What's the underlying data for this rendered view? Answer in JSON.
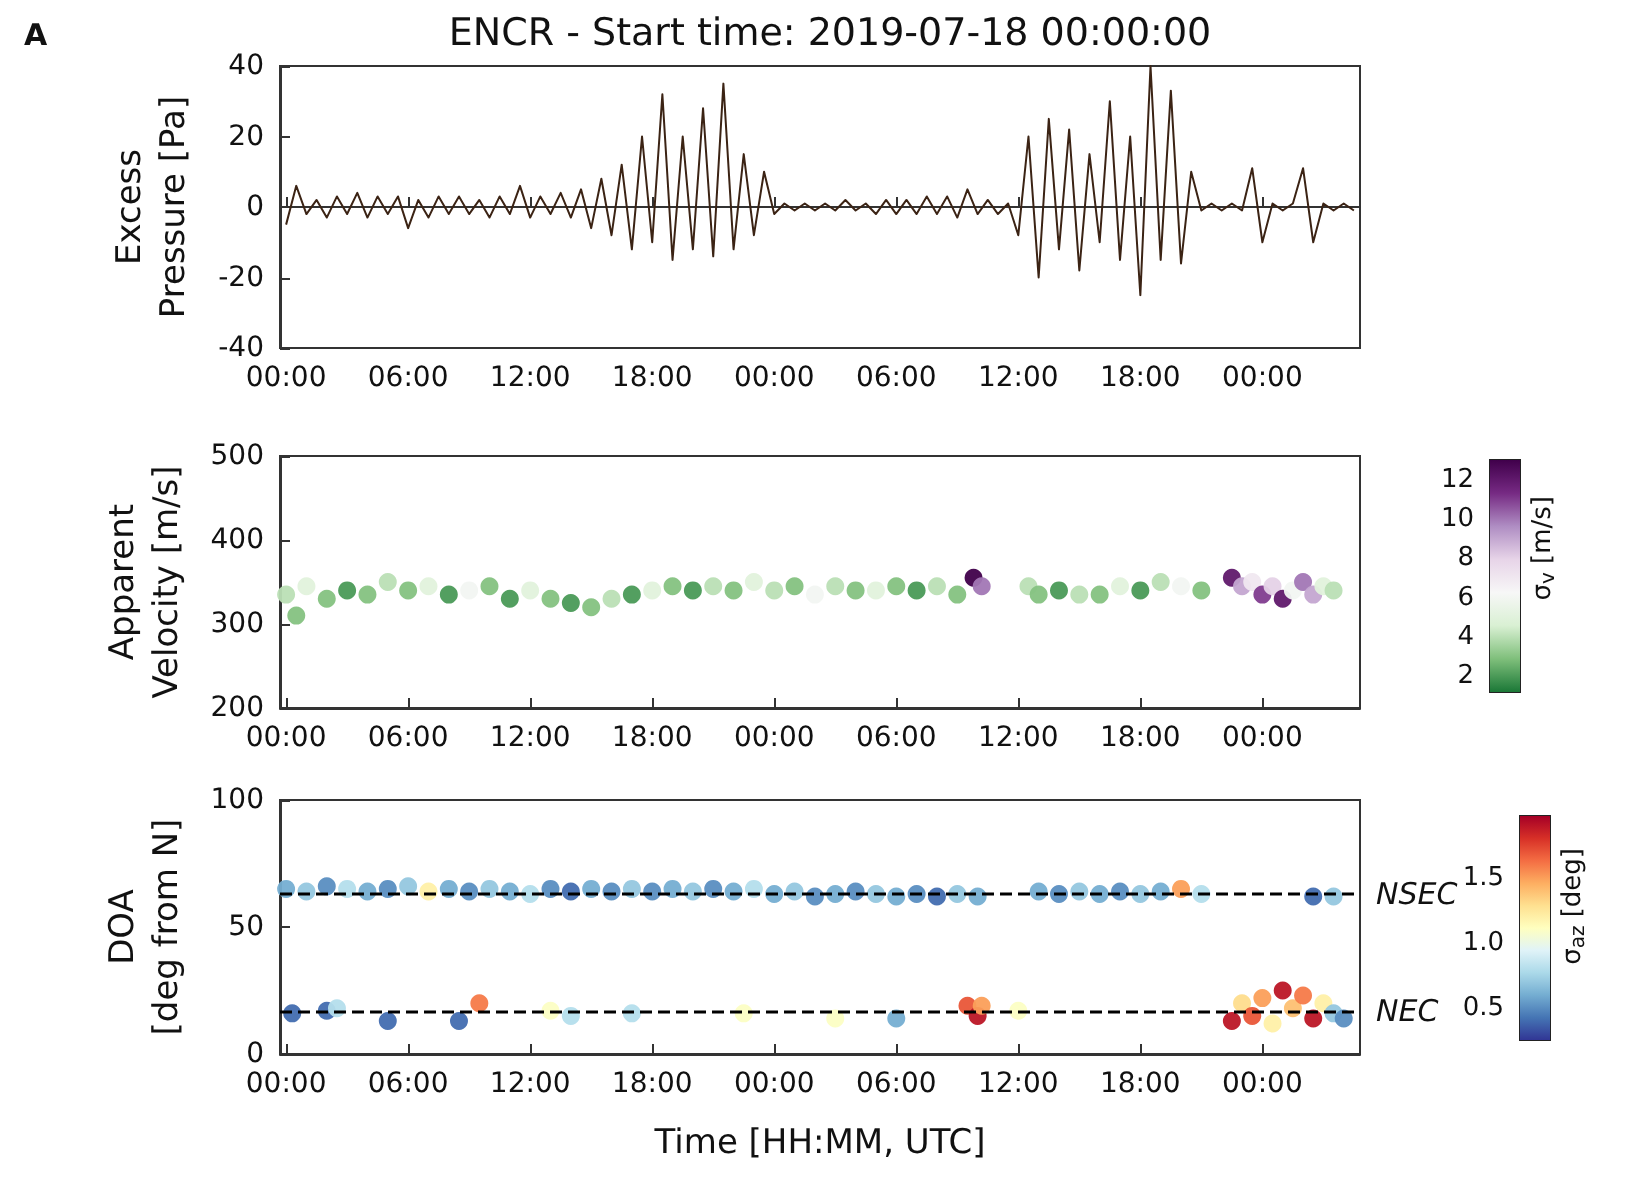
{
  "chart_data": [
    {
      "type": "line",
      "title": "ENCR - Start time: 2019-07-18 00:00:00",
      "ylabel": "Excess Pressure [Pa]",
      "annotations": [
        "A"
      ],
      "xlim": [
        "2019-07-17T23:42",
        "2019-07-20T04:48"
      ],
      "xticks": [
        {
          "value": "2019-07-18T00:00",
          "label": "00:00"
        },
        {
          "value": "2019-07-18T06:00",
          "label": "06:00"
        },
        {
          "value": "2019-07-18T12:00",
          "label": "12:00"
        },
        {
          "value": "2019-07-18T18:00",
          "label": "18:00"
        },
        {
          "value": "2019-07-19T00:00",
          "label": "00:00"
        },
        {
          "value": "2019-07-19T06:00",
          "label": "06:00"
        },
        {
          "value": "2019-07-19T12:00",
          "label": "12:00"
        },
        {
          "value": "2019-07-19T18:00",
          "label": "18:00"
        },
        {
          "value": "2019-07-20T00:00",
          "label": "00:00"
        }
      ],
      "ylim": [
        -40,
        40
      ],
      "yticks": [
        -40,
        -20,
        0,
        20,
        40
      ],
      "series": [
        {
          "color": "#3b2314",
          "x": [
            "2019-07-18T00:00",
            "2019-07-18T00:30",
            "2019-07-18T01:00",
            "2019-07-18T01:30",
            "2019-07-18T02:00",
            "2019-07-18T02:30",
            "2019-07-18T03:00",
            "2019-07-18T03:30",
            "2019-07-18T04:00",
            "2019-07-18T04:30",
            "2019-07-18T05:00",
            "2019-07-18T05:30",
            "2019-07-18T06:00",
            "2019-07-18T06:30",
            "2019-07-18T07:00",
            "2019-07-18T07:30",
            "2019-07-18T08:00",
            "2019-07-18T08:30",
            "2019-07-18T09:00",
            "2019-07-18T09:30",
            "2019-07-18T10:00",
            "2019-07-18T10:30",
            "2019-07-18T11:00",
            "2019-07-18T11:30",
            "2019-07-18T12:00",
            "2019-07-18T12:30",
            "2019-07-18T13:00",
            "2019-07-18T13:30",
            "2019-07-18T14:00",
            "2019-07-18T14:30",
            "2019-07-18T15:00",
            "2019-07-18T15:30",
            "2019-07-18T16:00",
            "2019-07-18T16:30",
            "2019-07-18T17:00",
            "2019-07-18T17:30",
            "2019-07-18T18:00",
            "2019-07-18T18:30",
            "2019-07-18T19:00",
            "2019-07-18T19:30",
            "2019-07-18T20:00",
            "2019-07-18T20:30",
            "2019-07-18T21:00",
            "2019-07-18T21:30",
            "2019-07-18T22:00",
            "2019-07-18T22:30",
            "2019-07-18T23:00",
            "2019-07-18T23:30",
            "2019-07-19T00:00",
            "2019-07-19T00:30",
            "2019-07-19T01:00",
            "2019-07-19T01:30",
            "2019-07-19T02:00",
            "2019-07-19T02:30",
            "2019-07-19T03:00",
            "2019-07-19T03:30",
            "2019-07-19T04:00",
            "2019-07-19T04:30",
            "2019-07-19T05:00",
            "2019-07-19T05:30",
            "2019-07-19T06:00",
            "2019-07-19T06:30",
            "2019-07-19T07:00",
            "2019-07-19T07:30",
            "2019-07-19T08:00",
            "2019-07-19T08:30",
            "2019-07-19T09:00",
            "2019-07-19T09:30",
            "2019-07-19T10:00",
            "2019-07-19T10:30",
            "2019-07-19T11:00",
            "2019-07-19T11:30",
            "2019-07-19T12:00",
            "2019-07-19T12:30",
            "2019-07-19T13:00",
            "2019-07-19T13:30",
            "2019-07-19T14:00",
            "2019-07-19T14:30",
            "2019-07-19T15:00",
            "2019-07-19T15:30",
            "2019-07-19T16:00",
            "2019-07-19T16:30",
            "2019-07-19T17:00",
            "2019-07-19T17:30",
            "2019-07-19T18:00",
            "2019-07-19T18:30",
            "2019-07-19T19:00",
            "2019-07-19T19:30",
            "2019-07-19T20:00",
            "2019-07-19T20:30",
            "2019-07-19T21:00",
            "2019-07-19T21:30",
            "2019-07-19T22:00",
            "2019-07-19T22:30",
            "2019-07-19T23:00",
            "2019-07-19T23:30",
            "2019-07-20T00:00",
            "2019-07-20T00:30",
            "2019-07-20T01:00",
            "2019-07-20T01:30",
            "2019-07-20T02:00",
            "2019-07-20T02:30",
            "2019-07-20T03:00",
            "2019-07-20T03:30",
            "2019-07-20T04:00",
            "2019-07-20T04:30"
          ],
          "values": [
            -5,
            6,
            -2,
            2,
            -3,
            3,
            -2,
            4,
            -3,
            3,
            -2,
            3,
            -6,
            2,
            -3,
            3,
            -2,
            3,
            -2,
            2,
            -3,
            3,
            -2,
            6,
            -3,
            3,
            -2,
            4,
            -3,
            5,
            -6,
            8,
            -8,
            12,
            -12,
            20,
            -10,
            32,
            -15,
            20,
            -12,
            28,
            -14,
            35,
            -12,
            15,
            -8,
            10,
            -2,
            1,
            -1,
            1,
            -1,
            1,
            -1,
            2,
            -1,
            1,
            -2,
            2,
            -2,
            2,
            -2,
            3,
            -2,
            3,
            -3,
            5,
            -2,
            2,
            -2,
            1,
            -8,
            20,
            -20,
            25,
            -12,
            22,
            -18,
            15,
            -10,
            30,
            -15,
            20,
            -25,
            40,
            -15,
            33,
            -16,
            10,
            -1,
            1,
            -1,
            1,
            -1,
            11,
            -10,
            1,
            -1,
            1,
            11,
            -10,
            1,
            -1,
            1,
            -1
          ]
        }
      ]
    },
    {
      "type": "scatter",
      "ylabel": "Apparent Velocity [m/s]",
      "marker": "circle",
      "clabel": "σ$_{v}$ [m/s]",
      "clim": [
        1.2,
        13
      ],
      "cticks": [
        2,
        4,
        6,
        8,
        10,
        12
      ],
      "xlim": [
        "2019-07-17T23:42",
        "2019-07-20T04:48"
      ],
      "xticks": [
        {
          "value": "2019-07-18T00:00",
          "label": "00:00"
        },
        {
          "value": "2019-07-18T06:00",
          "label": "06:00"
        },
        {
          "value": "2019-07-18T12:00",
          "label": "12:00"
        },
        {
          "value": "2019-07-18T18:00",
          "label": "18:00"
        },
        {
          "value": "2019-07-19T00:00",
          "label": "00:00"
        },
        {
          "value": "2019-07-19T06:00",
          "label": "06:00"
        },
        {
          "value": "2019-07-19T12:00",
          "label": "12:00"
        },
        {
          "value": "2019-07-19T18:00",
          "label": "18:00"
        },
        {
          "value": "2019-07-20T00:00",
          "label": "00:00"
        }
      ],
      "ylim": [
        200,
        500
      ],
      "yticks": [
        200,
        300,
        400,
        500
      ],
      "series": [
        {
          "x": [
            "2019-07-18T00:00",
            "2019-07-18T00:30",
            "2019-07-18T01:00",
            "2019-07-18T02:00",
            "2019-07-18T03:00",
            "2019-07-18T04:00",
            "2019-07-18T05:00",
            "2019-07-18T06:00",
            "2019-07-18T07:00",
            "2019-07-18T08:00",
            "2019-07-18T09:00",
            "2019-07-18T10:00",
            "2019-07-18T11:00",
            "2019-07-18T12:00",
            "2019-07-18T13:00",
            "2019-07-18T14:00",
            "2019-07-18T15:00",
            "2019-07-18T16:00",
            "2019-07-18T17:00",
            "2019-07-18T18:00",
            "2019-07-18T19:00",
            "2019-07-18T20:00",
            "2019-07-18T21:00",
            "2019-07-18T22:00",
            "2019-07-18T23:00",
            "2019-07-19T00:00",
            "2019-07-19T01:00",
            "2019-07-19T02:00",
            "2019-07-19T03:00",
            "2019-07-19T04:00",
            "2019-07-19T05:00",
            "2019-07-19T06:00",
            "2019-07-19T07:00",
            "2019-07-19T08:00",
            "2019-07-19T09:00",
            "2019-07-19T09:48",
            "2019-07-19T10:12",
            "2019-07-19T12:30",
            "2019-07-19T13:00",
            "2019-07-19T14:00",
            "2019-07-19T15:00",
            "2019-07-19T16:00",
            "2019-07-19T17:00",
            "2019-07-19T18:00",
            "2019-07-19T19:00",
            "2019-07-19T20:00",
            "2019-07-19T21:00",
            "2019-07-19T22:30",
            "2019-07-19T23:00",
            "2019-07-19T23:30",
            "2019-07-20T00:00",
            "2019-07-20T00:30",
            "2019-07-20T01:00",
            "2019-07-20T01:30",
            "2019-07-20T02:00",
            "2019-07-20T02:30",
            "2019-07-20T03:00",
            "2019-07-20T03:30"
          ],
          "values": [
            335,
            310,
            345,
            330,
            340,
            335,
            350,
            340,
            345,
            335,
            340,
            345,
            330,
            340,
            330,
            325,
            320,
            330,
            335,
            340,
            345,
            340,
            345,
            340,
            350,
            340,
            345,
            335,
            345,
            340,
            340,
            345,
            340,
            345,
            335,
            355,
            345,
            345,
            335,
            340,
            335,
            335,
            345,
            340,
            350,
            345,
            340,
            355,
            345,
            350,
            335,
            345,
            330,
            340,
            350,
            335,
            345,
            340
          ],
          "cvalues": [
            4,
            3,
            5,
            3,
            2,
            3,
            4,
            3,
            5,
            2,
            6,
            3,
            2,
            5,
            3,
            2,
            3,
            4,
            2,
            5,
            3,
            2,
            4,
            3,
            5,
            4,
            3,
            6,
            4,
            3,
            5,
            3,
            2,
            4,
            3,
            13,
            10,
            4,
            3,
            2,
            4,
            3,
            5,
            2,
            4,
            6,
            3,
            12,
            9,
            7,
            11,
            8,
            12,
            6,
            10,
            9,
            5,
            4
          ]
        }
      ]
    },
    {
      "type": "scatter",
      "ylabel": "DOA [deg from N]",
      "xlabel": "Time [HH:MM, UTC]",
      "marker": "circle",
      "clabel": "σ$_{az}$ [deg]",
      "clim": [
        0.25,
        1.98
      ],
      "cticks": [
        0.5,
        {
          "value": 1,
          "label": "1.0"
        },
        1.5
      ],
      "xlim": [
        "2019-07-17T23:42",
        "2019-07-20T04:48"
      ],
      "xticks": [
        {
          "value": "2019-07-18T00:00",
          "label": "00:00"
        },
        {
          "value": "2019-07-18T06:00",
          "label": "06:00"
        },
        {
          "value": "2019-07-18T12:00",
          "label": "12:00"
        },
        {
          "value": "2019-07-18T18:00",
          "label": "18:00"
        },
        {
          "value": "2019-07-19T00:00",
          "label": "00:00"
        },
        {
          "value": "2019-07-19T06:00",
          "label": "06:00"
        },
        {
          "value": "2019-07-19T12:00",
          "label": "12:00"
        },
        {
          "value": "2019-07-19T18:00",
          "label": "18:00"
        },
        {
          "value": "2019-07-20T00:00",
          "label": "00:00"
        }
      ],
      "ylim": [
        0,
        100
      ],
      "yticks": [
        0,
        50,
        100
      ],
      "ref_lines": [
        {
          "axis": "y",
          "value": 63,
          "label": "NSEC",
          "color": "#000000",
          "line_style": "dashed"
        },
        {
          "axis": "y",
          "value": 17,
          "label": "NEC",
          "color": "#000000",
          "line_style": "dashed"
        }
      ],
      "series": [
        {
          "x": [
            "2019-07-18T00:00",
            "2019-07-18T01:00",
            "2019-07-18T02:00",
            "2019-07-18T03:00",
            "2019-07-18T04:00",
            "2019-07-18T05:00",
            "2019-07-18T06:00",
            "2019-07-18T07:00",
            "2019-07-18T08:00",
            "2019-07-18T09:00",
            "2019-07-18T10:00",
            "2019-07-18T11:00",
            "2019-07-18T12:00",
            "2019-07-18T13:00",
            "2019-07-18T14:00",
            "2019-07-18T15:00",
            "2019-07-18T16:00",
            "2019-07-18T17:00",
            "2019-07-18T18:00",
            "2019-07-18T19:00",
            "2019-07-18T20:00",
            "2019-07-18T21:00",
            "2019-07-18T22:00",
            "2019-07-18T23:00",
            "2019-07-19T00:00",
            "2019-07-19T01:00",
            "2019-07-19T02:00",
            "2019-07-19T03:00",
            "2019-07-19T04:00",
            "2019-07-19T05:00",
            "2019-07-19T06:00",
            "2019-07-19T07:00",
            "2019-07-19T08:00",
            "2019-07-19T09:00",
            "2019-07-19T10:00",
            "2019-07-19T13:00",
            "2019-07-19T14:00",
            "2019-07-19T15:00",
            "2019-07-19T16:00",
            "2019-07-19T17:00",
            "2019-07-19T18:00",
            "2019-07-19T19:00",
            "2019-07-19T20:00",
            "2019-07-19T21:00",
            "2019-07-20T02:30",
            "2019-07-20T03:30",
            "2019-07-18T00:18",
            "2019-07-18T02:00",
            "2019-07-18T02:30",
            "2019-07-18T05:00",
            "2019-07-18T08:30",
            "2019-07-18T09:30",
            "2019-07-18T13:00",
            "2019-07-18T14:00",
            "2019-07-18T17:00",
            "2019-07-18T22:30",
            "2019-07-19T03:00",
            "2019-07-19T06:00",
            "2019-07-19T09:30",
            "2019-07-19T10:00",
            "2019-07-19T10:12",
            "2019-07-19T12:00",
            "2019-07-19T22:30",
            "2019-07-19T23:00",
            "2019-07-19T23:30",
            "2019-07-20T00:00",
            "2019-07-20T00:30",
            "2019-07-20T01:00",
            "2019-07-20T01:30",
            "2019-07-20T02:00",
            "2019-07-20T02:30",
            "2019-07-20T03:00",
            "2019-07-20T03:30",
            "2019-07-20T04:00"
          ],
          "values": [
            65,
            64,
            66,
            65,
            64,
            65,
            66,
            64,
            65,
            64,
            65,
            64,
            63,
            65,
            64,
            65,
            64,
            65,
            64,
            65,
            64,
            65,
            64,
            65,
            63,
            64,
            62,
            63,
            64,
            63,
            62,
            63,
            62,
            63,
            62,
            64,
            63,
            64,
            63,
            64,
            63,
            64,
            65,
            63,
            62,
            62,
            16,
            17,
            18,
            13,
            13,
            20,
            17,
            15,
            16,
            16,
            14,
            14,
            19,
            15,
            19,
            17,
            13,
            20,
            15,
            22,
            12,
            25,
            18,
            23,
            14,
            20,
            16,
            14
          ],
          "cvalues": [
            0.6,
            0.7,
            0.5,
            0.8,
            0.6,
            0.5,
            0.7,
            1.2,
            0.6,
            0.5,
            0.7,
            0.6,
            0.8,
            0.5,
            0.4,
            0.6,
            0.5,
            0.7,
            0.5,
            0.6,
            0.7,
            0.5,
            0.6,
            0.8,
            0.6,
            0.7,
            0.5,
            0.6,
            0.5,
            0.7,
            0.6,
            0.5,
            0.4,
            0.7,
            0.6,
            0.6,
            0.5,
            0.7,
            0.6,
            0.5,
            0.7,
            0.6,
            1.5,
            0.8,
            0.4,
            0.7,
            0.4,
            0.4,
            0.8,
            0.4,
            0.4,
            1.6,
            1.1,
            0.8,
            0.8,
            1.1,
            1.1,
            0.6,
            1.7,
            1.9,
            1.5,
            1.1,
            1.9,
            1.3,
            1.7,
            1.5,
            1.2,
            1.9,
            1.4,
            1.6,
            1.9,
            1.2,
            0.7,
            0.5
          ]
        }
      ]
    }
  ]
}
